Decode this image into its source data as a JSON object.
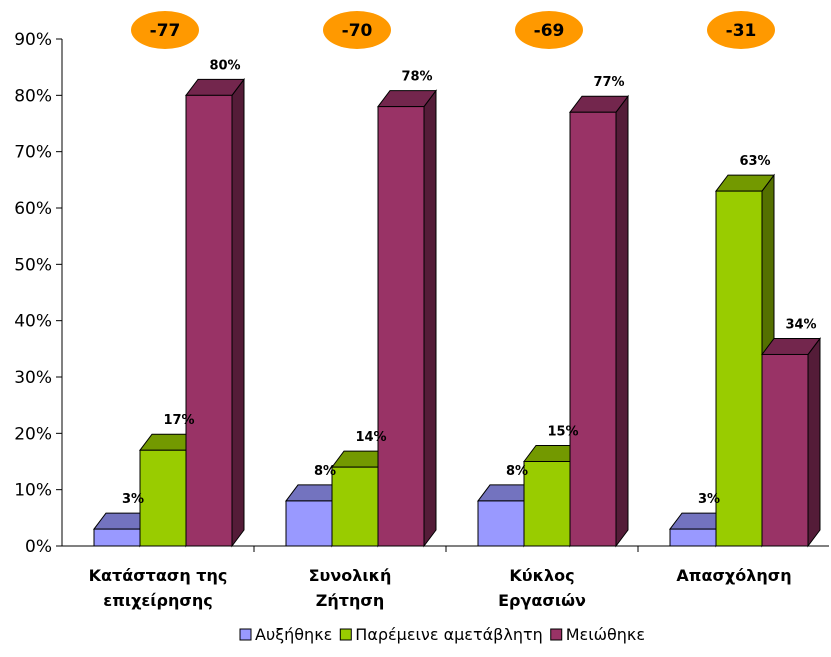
{
  "chart_data": {
    "type": "bar",
    "categories": [
      [
        "Κατάσταση της",
        "επιχείρησης"
      ],
      [
        "Συνολική",
        "Ζήτηση"
      ],
      [
        "Κύκλος",
        "Εργασιών"
      ],
      [
        "Απασχόληση"
      ]
    ],
    "series": [
      {
        "name": "Αυξήθηκε",
        "values": [
          3,
          8,
          8,
          3
        ],
        "labels": [
          "3%",
          "8%",
          "8%",
          "3%"
        ],
        "color": "#9999ff"
      },
      {
        "name": "Παρέμεινε αμετάβλητη",
        "values": [
          17,
          14,
          15,
          63
        ],
        "labels": [
          "17%",
          "14%",
          "15%",
          "63%"
        ],
        "color": "#99cc00"
      },
      {
        "name": "Μειώθηκε",
        "values": [
          80,
          78,
          77,
          34
        ],
        "labels": [
          "80%",
          "78%",
          "77%",
          "34%"
        ],
        "color": "#993366"
      }
    ],
    "balances": [
      "-77",
      "-70",
      "-69",
      "-31"
    ],
    "balance_color": "#ff9900",
    "y_ticks": [
      "0%",
      "10%",
      "20%",
      "30%",
      "40%",
      "50%",
      "60%",
      "70%",
      "80%",
      "90%"
    ],
    "ylim": [
      0,
      90
    ],
    "grid": false,
    "legend_position": "bottom",
    "style": "3d-column"
  }
}
